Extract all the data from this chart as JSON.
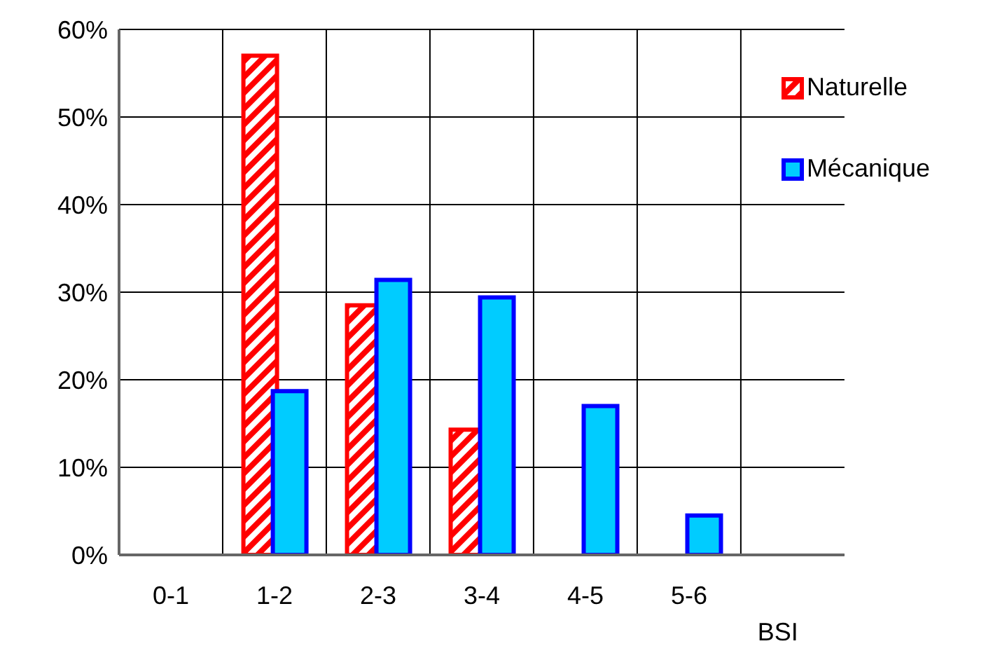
{
  "chart_data": {
    "type": "bar",
    "xlabel": "BSI",
    "categories": [
      "0-1",
      "1-2",
      "2-3",
      "3-4",
      "4-5",
      "5-6",
      null
    ],
    "series": [
      {
        "name": "Naturelle",
        "color": "#ff0000",
        "values": [
          null,
          57,
          28.5,
          14.3,
          null,
          null,
          null
        ]
      },
      {
        "name": "Mécanique",
        "color": "#00ccff",
        "values": [
          null,
          18.7,
          31.4,
          29.4,
          17,
          4.5,
          null
        ]
      }
    ],
    "ylim": [
      0,
      60
    ],
    "yticks": [
      {
        "value": 0,
        "label": "0%"
      },
      {
        "value": 10,
        "label": "10%"
      },
      {
        "value": 20,
        "label": "20%"
      },
      {
        "value": 30,
        "label": "30%"
      },
      {
        "value": 40,
        "label": "40%"
      },
      {
        "value": 50,
        "label": "50%"
      },
      {
        "value": 60,
        "label": "60%"
      }
    ],
    "grid": true,
    "legend": "top right"
  }
}
